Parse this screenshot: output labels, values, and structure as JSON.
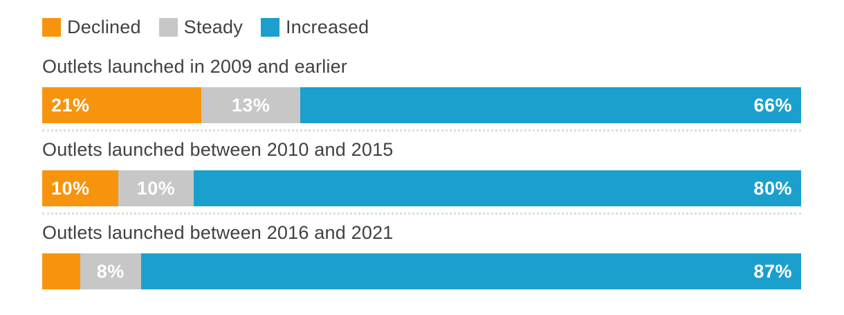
{
  "colors": {
    "declined": "#F7940D",
    "steady": "#C7C7C7",
    "increased": "#1BA0CD",
    "label_text": "#FFFFFF",
    "title_text": "#414042",
    "separator": "#DCDCDC"
  },
  "chart_data": {
    "type": "bar",
    "orientation": "horizontal",
    "stacked": true,
    "xlim": [
      0,
      100
    ],
    "grid": false,
    "legend_position": "top",
    "categories": [
      "Outlets launched in 2009 and earlier",
      "Outlets launched between 2010 and 2015",
      "Outlets launched between 2016 and 2021"
    ],
    "series": [
      {
        "name": "Declined",
        "color": "#F7940D",
        "values": [
          21,
          10,
          5
        ]
      },
      {
        "name": "Steady",
        "color": "#C7C7C7",
        "values": [
          13,
          10,
          8
        ]
      },
      {
        "name": "Increased",
        "color": "#1BA0CD",
        "values": [
          66,
          80,
          87
        ]
      }
    ],
    "value_labels": [
      [
        "21%",
        "13%",
        "66%"
      ],
      [
        "10%",
        "10%",
        "80%"
      ],
      [
        "",
        "8%",
        "87%"
      ]
    ]
  }
}
